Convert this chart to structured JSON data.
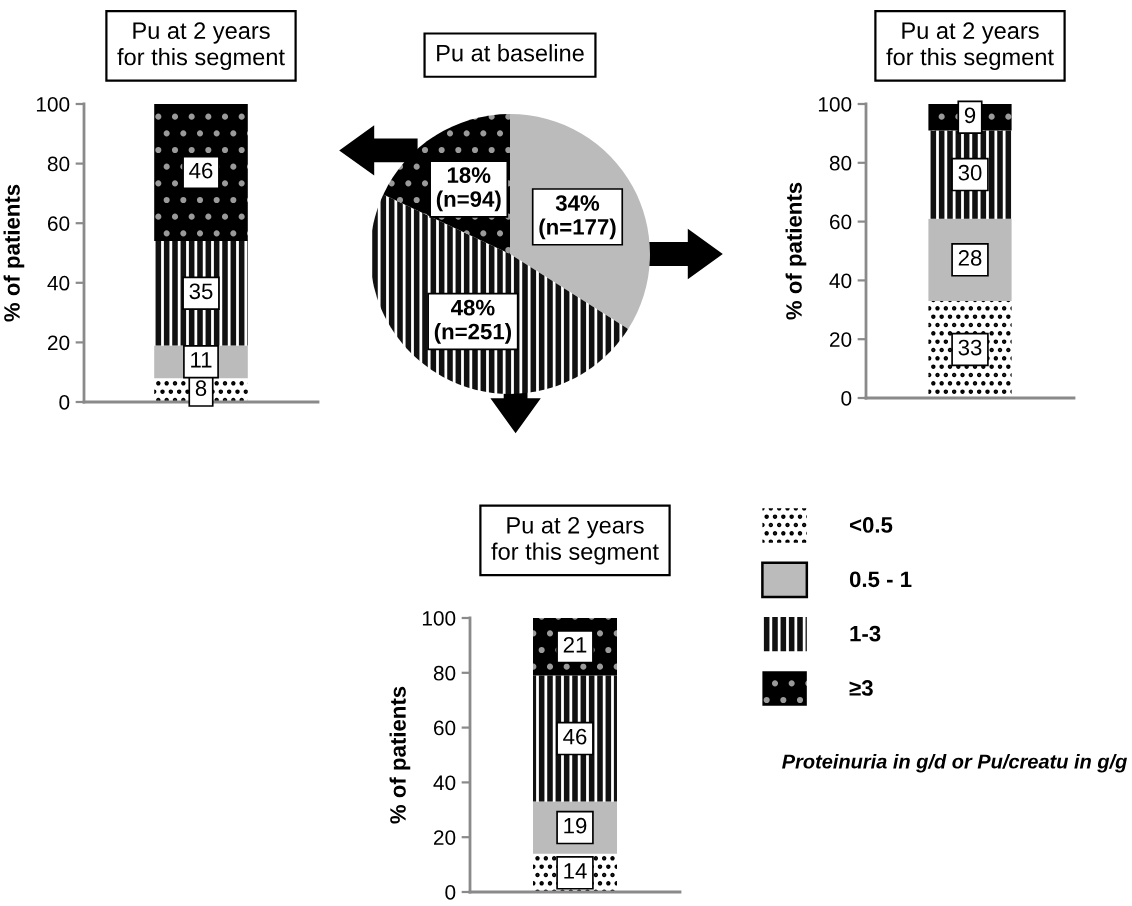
{
  "chart_data": [
    {
      "type": "bar",
      "title": "Pu at 2 years\nfor this segment",
      "ylabel": "% of patients",
      "categories": [
        null
      ],
      "stacked": true,
      "data_labels": true,
      "ylim": [
        0,
        100
      ],
      "yticks": [
        0,
        20,
        40,
        60,
        80,
        100
      ],
      "series": [
        {
          "color": "#ffffff",
          "values": [
            8
          ]
        },
        {
          "color": "#bbbbbb",
          "values": [
            11
          ]
        },
        {
          "color": "#111111",
          "values": [
            35
          ]
        },
        {
          "color": "#000000",
          "values": [
            46
          ]
        }
      ]
    },
    {
      "type": "pie",
      "title": "Pu at baseline",
      "categories": [
        null,
        null,
        null
      ],
      "values": [
        34,
        48,
        18
      ],
      "colors": [
        "#bbbbbb",
        "#111111",
        "#000000"
      ],
      "value_labels": [
        "34%\n(n=177)",
        "48%\n(n=251)",
        "18%\n(n=94)"
      ]
    },
    {
      "type": "bar",
      "title": "Pu at 2 years\nfor this segment",
      "ylabel": "% of patients",
      "categories": [
        null
      ],
      "stacked": true,
      "data_labels": true,
      "ylim": [
        0,
        100
      ],
      "yticks": [
        0,
        20,
        40,
        60,
        80,
        100
      ],
      "series": [
        {
          "color": "#ffffff",
          "values": [
            33
          ]
        },
        {
          "color": "#bbbbbb",
          "values": [
            28
          ]
        },
        {
          "color": "#111111",
          "values": [
            30
          ]
        },
        {
          "color": "#000000",
          "values": [
            9
          ]
        }
      ]
    },
    {
      "type": "bar",
      "title": "Pu at 2 years\nfor this segment",
      "ylabel": "% of patients",
      "categories": [
        null
      ],
      "stacked": true,
      "data_labels": true,
      "ylim": [
        0,
        100
      ],
      "yticks": [
        0,
        20,
        40,
        60,
        80,
        100
      ],
      "legend": "right",
      "annotations": [
        "Proteinuria in g/d or Pu/creatu in g/g"
      ],
      "series": [
        {
          "name": "<0.5",
          "color": "#ffffff",
          "values": [
            14
          ]
        },
        {
          "name": "0.5 - 1",
          "color": "#bbbbbb",
          "values": [
            19
          ]
        },
        {
          "name": "1-3",
          "color": "#111111",
          "values": [
            46
          ]
        },
        {
          "name": "≥3",
          "color": "#000000",
          "values": [
            21
          ]
        }
      ]
    }
  ]
}
